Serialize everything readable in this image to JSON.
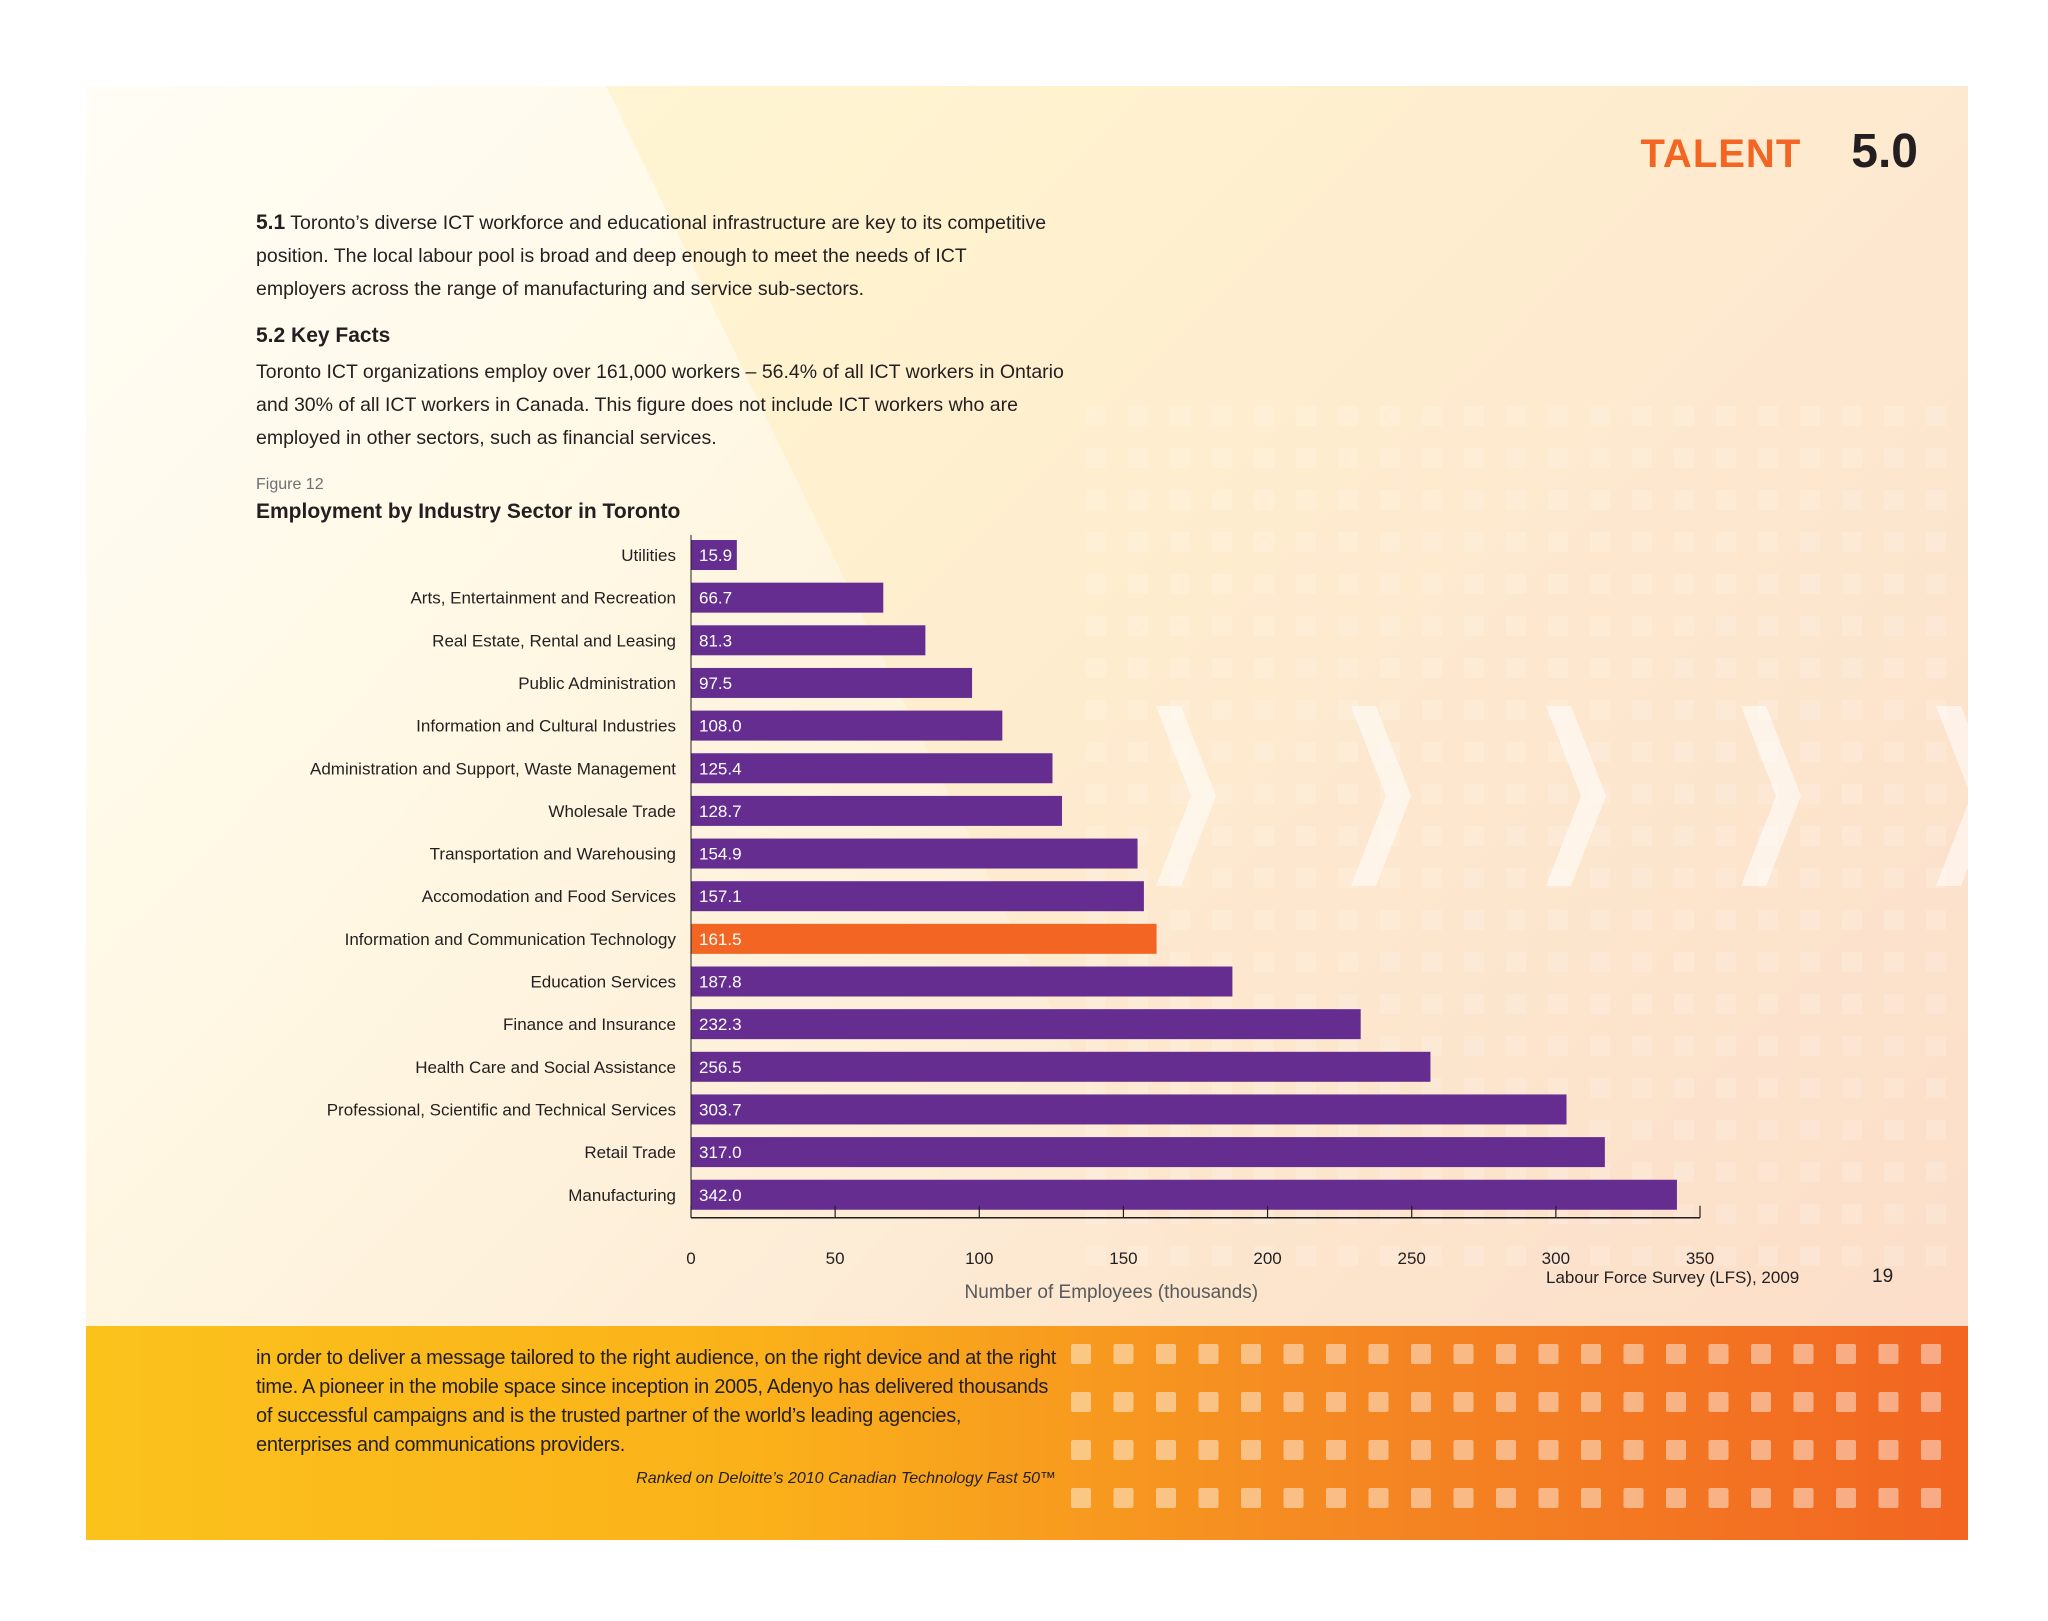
{
  "header": {
    "section_word": "TALENT",
    "section_number": "5.0"
  },
  "intro": {
    "num": "5.1",
    "text": "Toronto’s diverse ICT workforce and educational infrastructure are key to its competitive position. The local labour pool is broad and deep enough to meet the needs of ICT employers across the range of manufacturing and service sub-sectors."
  },
  "key_facts": {
    "title": "5.2 Key Facts",
    "text": "Toronto ICT organizations employ over 161,000 workers – 56.4% of all ICT workers in Ontario and 30% of all ICT workers in Canada. This figure does not include ICT workers who are employed in other sectors, such as financial services."
  },
  "figure": {
    "label": "Figure 12",
    "title": "Employment by Industry Sector in Toronto"
  },
  "chart_data": {
    "type": "bar",
    "orientation": "horizontal",
    "title": "Employment by Industry Sector in Toronto",
    "xlabel": "Number of Employees (thousands)",
    "ylabel": "",
    "xlim": [
      0,
      350
    ],
    "ticks": [
      0,
      50,
      100,
      150,
      200,
      250,
      300,
      350
    ],
    "categories": [
      "Utilities",
      "Arts, Entertainment and Recreation",
      "Real Estate, Rental and Leasing",
      "Public Administration",
      "Information and Cultural Industries",
      "Administration and Support, Waste Management",
      "Wholesale Trade",
      "Transportation and Warehousing",
      "Accomodation and Food Services",
      "Information and Communication Technology",
      "Education Services",
      "Finance and Insurance",
      "Health Care and Social Assistance",
      "Professional, Scientific and Technical Services",
      "Retail Trade",
      "Manufacturing"
    ],
    "values": [
      15.9,
      66.7,
      81.3,
      97.5,
      108.0,
      125.4,
      128.7,
      154.9,
      157.1,
      161.5,
      187.8,
      232.3,
      256.5,
      303.7,
      317.0,
      342.0
    ],
    "value_labels": [
      "15.9",
      "66.7",
      "81.3",
      "97.5",
      "108.0",
      "125.4",
      "128.7",
      "154.9",
      "157.1",
      "161.5",
      "187.8",
      "232.3",
      "256.5",
      "303.7",
      "317.0",
      "342.0"
    ],
    "highlight_category": "Information and Communication Technology",
    "colors": {
      "bar": "#662d91",
      "highlight": "#f26522",
      "label_text": "#ffffff"
    },
    "grid": false
  },
  "source": "Labour Force Survey (LFS), 2009",
  "page_number": "19",
  "band": {
    "text": "in order to deliver a message tailored to the right audience, on the right device and at the right time. A pioneer in the mobile space since inception in 2005, Adenyo has delivered thousands of successful campaigns and is the trusted partner of the world’s leading agencies, enterprises and communications providers.",
    "credit": "Ranked on Deloitte’s 2010 Canadian Technology Fast 50™"
  }
}
